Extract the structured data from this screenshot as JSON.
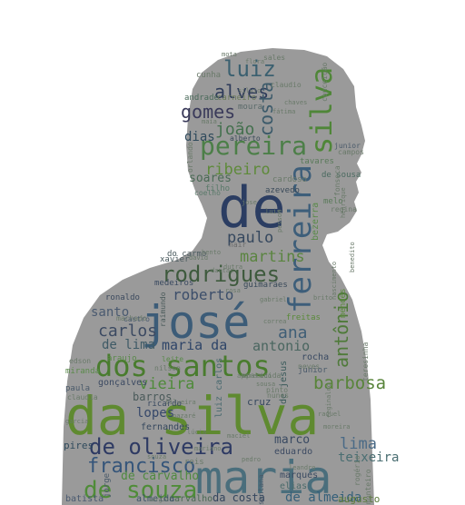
{
  "words": [
    {
      "text": "da silva",
      "color": "#5f8a30"
    },
    {
      "text": "maria",
      "color": "#4a6e7c"
    },
    {
      "text": "josé",
      "color": "#3c5c78"
    },
    {
      "text": "de",
      "color": "#2b3d62"
    },
    {
      "text": "dos santos",
      "color": "#497c2e"
    },
    {
      "text": "ferreira",
      "color": "#3d5e7a"
    },
    {
      "text": "pereira",
      "color": "#4c7f48"
    },
    {
      "text": "silva",
      "color": "#4f8638"
    },
    {
      "text": "rodrigues",
      "color": "#3e5a3d"
    },
    {
      "text": "de oliveira",
      "color": "#2e3a63"
    },
    {
      "text": "de souza",
      "color": "#4f8c38"
    },
    {
      "text": "francisco",
      "color": "#35557a"
    },
    {
      "text": "luiz",
      "color": "#3b6070"
    },
    {
      "text": "alves",
      "color": "#2e3b5a"
    },
    {
      "text": "gomes",
      "color": "#3a3a5a"
    },
    {
      "text": "costa",
      "color": "#3c5a6a"
    },
    {
      "text": "joão",
      "color": "#44704e"
    },
    {
      "text": "dias",
      "color": "#2f4a5c"
    },
    {
      "text": "ribeiro",
      "color": "#5e8a3a"
    },
    {
      "text": "soares",
      "color": "#4a6a55"
    },
    {
      "text": "antônio",
      "color": "#4f7a3a"
    },
    {
      "text": "paulo",
      "color": "#36485e"
    },
    {
      "text": "martins",
      "color": "#5a8440"
    },
    {
      "text": "roberto",
      "color": "#3c4e6a"
    },
    {
      "text": "carlos",
      "color": "#3c4a62"
    },
    {
      "text": "santo",
      "color": "#4a5a70"
    },
    {
      "text": "de lima",
      "color": "#3f5a66"
    },
    {
      "text": "maria da",
      "color": "#2f4568"
    },
    {
      "text": "antonio",
      "color": "#4a6660"
    },
    {
      "text": "ana",
      "color": "#3f5e76"
    },
    {
      "text": "barbosa",
      "color": "#58843a"
    },
    {
      "text": "vieira",
      "color": "#4f8a3a"
    },
    {
      "text": "lopes",
      "color": "#36486a"
    },
    {
      "text": "barros",
      "color": "#4a5a5a"
    },
    {
      "text": "lima",
      "color": "#4a6a86"
    },
    {
      "text": "teixeira",
      "color": "#4a6e72"
    },
    {
      "text": "marco",
      "color": "#3a4a62"
    },
    {
      "text": "de carvalho",
      "color": "#4f8a40"
    },
    {
      "text": "de almeida",
      "color": "#35607a"
    },
    {
      "text": "da costa",
      "color": "#35465e"
    },
    {
      "text": "augusto",
      "color": "#5a7a3a"
    },
    {
      "text": "carvalho",
      "color": "#4c6a55"
    },
    {
      "text": "almeida",
      "color": "#3a5266"
    },
    {
      "text": "batista",
      "color": "#4a5a70"
    },
    {
      "text": "pires",
      "color": "#2f4a5c"
    },
    {
      "text": "eduardo",
      "color": "#3c4a62"
    },
    {
      "text": "fernandes",
      "color": "#36485e"
    },
    {
      "text": "marques",
      "color": "#3a4a62"
    },
    {
      "text": "elias",
      "color": "#4a6a6a"
    },
    {
      "text": "cruz",
      "color": "#36485e"
    },
    {
      "text": "de jesus",
      "color": "#3a5a5a"
    },
    {
      "text": "luiz carlos",
      "color": "#4a6a70"
    },
    {
      "text": "gonçalves",
      "color": "#3c4a62"
    },
    {
      "text": "ricardo",
      "color": "#3a4a60"
    },
    {
      "text": "rocha",
      "color": "#3a4a62"
    },
    {
      "text": "júnior",
      "color": "#4a5a6a"
    },
    {
      "text": "mendes",
      "color": "#5a8a3a"
    },
    {
      "text": "freitas",
      "color": "#5a8a3a"
    },
    {
      "text": "castro",
      "color": "#4a5a70"
    },
    {
      "text": "raimundo",
      "color": "#4a5a5a"
    },
    {
      "text": "ronaldo",
      "color": "#3c4a5e"
    },
    {
      "text": "xavier",
      "color": "#4a5a5e"
    },
    {
      "text": "medeiros",
      "color": "#3a4a60"
    },
    {
      "text": "do carmo",
      "color": "#4a5a5e"
    },
    {
      "text": "guimarães",
      "color": "#3a4a5a"
    },
    {
      "text": "cardoso",
      "color": "#6a7a6a"
    },
    {
      "text": "azevedo",
      "color": "#3a4a5a"
    },
    {
      "text": "filho",
      "color": "#5a7a6a"
    },
    {
      "text": "coelho",
      "color": "#5a7a6a"
    },
    {
      "text": "de sousa",
      "color": "#4a6a60"
    },
    {
      "text": "melo",
      "color": "#5a7a5a"
    },
    {
      "text": "bezerra",
      "color": "#5a8a4a"
    },
    {
      "text": "tavares",
      "color": "#5a7a5a"
    },
    {
      "text": "alberto",
      "color": "#3a4a5a"
    },
    {
      "text": "moura",
      "color": "#5a6a6a"
    },
    {
      "text": "andrade",
      "color": "#4a6a5a"
    },
    {
      "text": "carneiro",
      "color": "#6a7a5a"
    },
    {
      "text": "cunha",
      "color": "#6a7a6a"
    },
    {
      "text": "sales",
      "color": "#6a7a6a"
    },
    {
      "text": "claudio",
      "color": "#6a7a6a"
    },
    {
      "text": "conceição",
      "color": "#6a7a6a"
    },
    {
      "text": "fonseca",
      "color": "#6a7a6a"
    },
    {
      "text": "junior",
      "color": "#4a5a6a"
    },
    {
      "text": "campos",
      "color": "#6a7a6a"
    },
    {
      "text": "regina",
      "color": "#6a7a6a"
    },
    {
      "text": "nair",
      "color": "#6a6a6a"
    },
    {
      "text": "nascimento",
      "color": "#6a7a6a"
    },
    {
      "text": "dutra",
      "color": "#6a7a6a"
    },
    {
      "text": "correa",
      "color": "#6a7a6a"
    },
    {
      "text": "brito",
      "color": "#6a7a6a"
    },
    {
      "text": "edson",
      "color": "#6a7a6a"
    },
    {
      "text": "miranda",
      "color": "#5a8a4a"
    },
    {
      "text": "machado",
      "color": "#6a7a6a"
    },
    {
      "text": "araujo",
      "color": "#5a8a4a"
    },
    {
      "text": "aparecida",
      "color": "#6a7a6a"
    },
    {
      "text": "leite",
      "color": "#5a8a4a"
    },
    {
      "text": "nilson",
      "color": "#6a7a6a"
    },
    {
      "text": "neves",
      "color": "#6a7a6a"
    },
    {
      "text": "nunes",
      "color": "#6a7a6a"
    },
    {
      "text": "pinto",
      "color": "#6a7a6a"
    },
    {
      "text": "paula",
      "color": "#4a5a6a"
    },
    {
      "text": "claudia",
      "color": "#6a7a6a"
    },
    {
      "text": "garcia",
      "color": "#6a7a6a"
    },
    {
      "text": "jorge",
      "color": "#4a5a6a"
    },
    {
      "text": "reis",
      "color": "#6a7a6a"
    },
    {
      "text": "santana",
      "color": "#4a5a6a"
    },
    {
      "text": "rogério",
      "color": "#6a7a6a"
    },
    {
      "text": "monteiro",
      "color": "#6a7a6a"
    },
    {
      "text": "teresinha",
      "color": "#6a7a6a"
    },
    {
      "text": "orlando",
      "color": "#6a7a6a"
    },
    {
      "text": "chaves",
      "color": "#6a7a6a"
    },
    {
      "text": "henrique",
      "color": "#6a7a6a"
    },
    {
      "text": "aparecido",
      "color": "#6a7a6a"
    },
    {
      "text": "sousa",
      "color": "#6a7a6a"
    },
    {
      "text": "nazaré",
      "color": "#6a7a6a"
    },
    {
      "text": "raquel",
      "color": "#6a7a6a"
    },
    {
      "text": "souza",
      "color": "#6a7a6a"
    },
    {
      "text": "leandro",
      "color": "#6a7a6a"
    },
    {
      "text": "pedro",
      "color": "#6a7a6a"
    },
    {
      "text": "sérgio",
      "color": "#6a7a6a"
    },
    {
      "text": "pessoa",
      "color": "#6a7a6a"
    },
    {
      "text": "david",
      "color": "#6a7a6a"
    },
    {
      "text": "bento",
      "color": "#6a7a6a"
    },
    {
      "text": "dantas",
      "color": "#6a7a6a"
    },
    {
      "text": "rosa",
      "color": "#6a7a6a"
    },
    {
      "text": "gabriel",
      "color": "#6a7a6a"
    },
    {
      "text": "lúcia",
      "color": "#6a7a6a"
    },
    {
      "text": "silveira",
      "color": "#6a7a6a"
    },
    {
      "text": "mariano",
      "color": "#6a7a6a"
    },
    {
      "text": "maciel",
      "color": "#6a7a6a"
    },
    {
      "text": "reginaldo",
      "color": "#6a7a6a"
    },
    {
      "text": "benedito",
      "color": "#6a7a6a"
    },
    {
      "text": "moreira",
      "color": "#6a7a6a"
    },
    {
      "text": "jose",
      "color": "#6a7a6a"
    },
    {
      "text": "luis",
      "color": "#6a7a6a"
    },
    {
      "text": "silvio",
      "color": "#6a7a6a"
    },
    {
      "text": "maia",
      "color": "#6a7a6a"
    },
    {
      "text": "flora",
      "color": "#6a7a6a"
    },
    {
      "text": "fátima",
      "color": "#6a7a6a"
    },
    {
      "text": "mota",
      "color": "#6a7a6a"
    }
  ]
}
